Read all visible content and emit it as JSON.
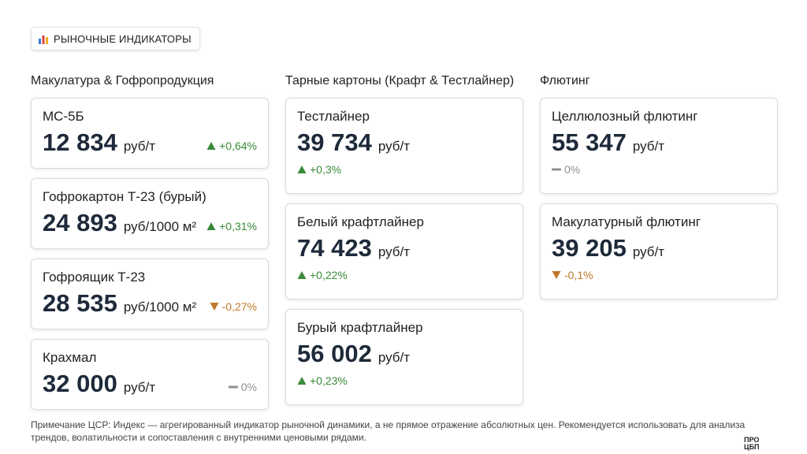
{
  "header": {
    "title": "РЫНОЧНЫЕ ИНДИКАТОРЫ"
  },
  "columns": [
    {
      "title": "Макулатура & Гофропродукция",
      "cards": [
        {
          "name": "МС-5Б",
          "value": "12 834",
          "unit": "руб/т",
          "change": "+0,64%",
          "direction": "up"
        },
        {
          "name": "Гофрокартон Т-23 (бурый)",
          "value": "24 893",
          "unit": "руб/1000 м²",
          "change": "+0,31%",
          "direction": "up"
        },
        {
          "name": "Гофроящик Т-23",
          "value": "28 535",
          "unit": "руб/1000 м²",
          "change": "-0,27%",
          "direction": "down"
        },
        {
          "name": "Крахмал",
          "value": "32 000",
          "unit": "руб/т",
          "change": "0%",
          "direction": "flat"
        }
      ]
    },
    {
      "title": "Тарные картоны (Крафт & Тестлайнер)",
      "cards": [
        {
          "name": "Тестлайнер",
          "value": "39 734",
          "unit": "руб/т",
          "change": "+0,3%",
          "direction": "up"
        },
        {
          "name": "Белый крафтлайнер",
          "value": "74 423",
          "unit": "руб/т",
          "change": "+0,22%",
          "direction": "up"
        },
        {
          "name": "Бурый крафтлайнер",
          "value": "56 002",
          "unit": "руб/т",
          "change": "+0,23%",
          "direction": "up"
        }
      ]
    },
    {
      "title": "Флютинг",
      "cards": [
        {
          "name": "Целлюлозный флютинг",
          "value": "55 347",
          "unit": "руб/т",
          "change": "0%",
          "direction": "flat"
        },
        {
          "name": "Макулатурный флютинг",
          "value": "39 205",
          "unit": "руб/т",
          "change": "-0,1%",
          "direction": "down"
        }
      ]
    }
  ],
  "note": "Примечание ЦСР: Индекс — агрегированный индикатор рыночной динамики, а не прямое отражение абсолютных цен. Рекомендуется использовать для анализа трендов, волатильности и сопоставления с внутренними ценовыми рядами.",
  "logo": "ПРО ЦБП"
}
